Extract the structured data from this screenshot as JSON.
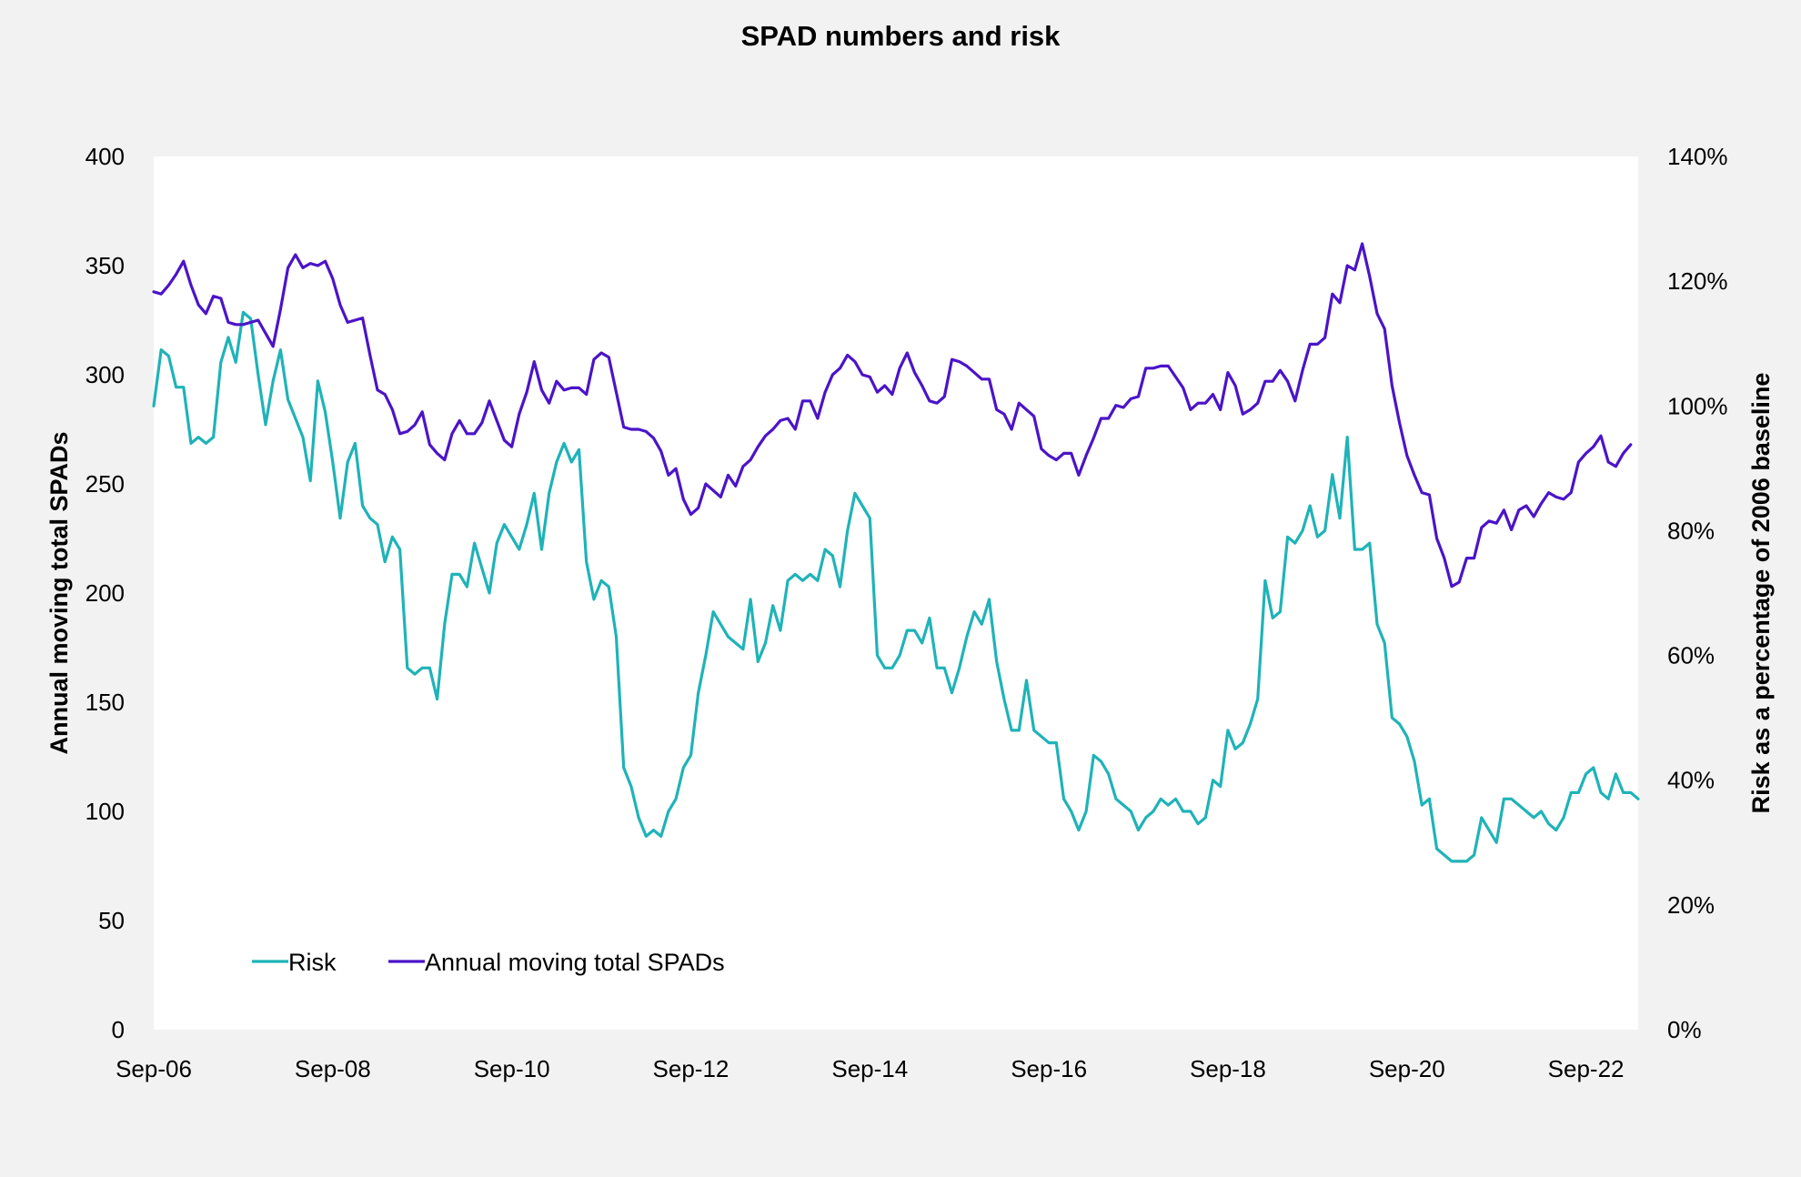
{
  "chart_data": {
    "type": "line",
    "title": "SPAD numbers and risk",
    "ylabel": "Annual moving total SPADs",
    "y2label": "Risk as a percentage of 2006 baseline",
    "xlabel": "",
    "ylim": [
      0,
      400
    ],
    "y2lim": [
      0,
      140
    ],
    "yticks": [
      "0",
      "50",
      "100",
      "150",
      "200",
      "250",
      "300",
      "350",
      "400"
    ],
    "y2ticks": [
      "0%",
      "20%",
      "40%",
      "60%",
      "80%",
      "100%",
      "120%",
      "140%"
    ],
    "xticks": [
      "Sep-06",
      "Sep-08",
      "Sep-10",
      "Sep-12",
      "Sep-14",
      "Sep-16",
      "Sep-18",
      "Sep-20",
      "Sep-22"
    ],
    "x_start": "Sep-06",
    "x_end": "Jul-23",
    "x_period": "monthly",
    "grid": false,
    "legend_position": "bottom-left",
    "colors": {
      "risk": "#1fb3b8",
      "spads": "#4b14c8",
      "plot_bg": "#ffffff",
      "page_bg": "#f2f2f2"
    },
    "series": [
      {
        "name": "Risk",
        "axis": "right",
        "values": [
          100,
          109,
          108,
          103,
          103,
          94,
          95,
          94,
          95,
          107,
          111,
          107,
          115,
          114,
          105,
          97,
          104,
          109,
          101,
          98,
          95,
          88,
          104,
          99,
          91,
          82,
          91,
          94,
          84,
          82,
          81,
          75,
          79,
          77,
          58,
          57,
          58,
          58,
          53,
          65,
          73,
          73,
          71,
          78,
          74,
          70,
          78,
          81,
          79,
          77,
          81,
          86,
          77,
          86,
          91,
          94,
          91,
          93,
          75,
          69,
          72,
          71,
          63,
          42,
          39,
          34,
          31,
          32,
          31,
          35,
          37,
          42,
          44,
          54,
          60,
          67,
          65,
          63,
          62,
          61,
          69,
          59,
          62,
          68,
          64,
          72,
          73,
          72,
          73,
          72,
          77,
          76,
          71,
          80,
          86,
          84,
          82,
          60,
          58,
          58,
          60,
          64,
          64,
          62,
          66,
          58,
          58,
          54,
          58,
          63,
          67,
          65,
          69,
          59,
          53,
          48,
          48,
          56,
          48,
          47,
          46,
          46,
          37,
          35,
          32,
          35,
          44,
          43,
          41,
          37,
          36,
          35,
          32,
          34,
          35,
          37,
          36,
          37,
          35,
          35,
          33,
          34,
          40,
          39,
          48,
          45,
          46,
          49,
          53,
          72,
          66,
          67,
          79,
          78,
          80,
          84,
          79,
          80,
          89,
          82,
          95,
          77,
          77,
          78,
          65,
          62,
          50,
          49,
          47,
          43,
          36,
          37,
          29,
          28,
          27,
          27,
          27,
          28,
          34,
          32,
          30,
          37,
          37,
          36,
          35,
          34,
          35,
          33,
          32,
          34,
          38,
          38,
          41,
          42,
          38,
          37,
          41,
          38,
          38,
          37
        ]
      },
      {
        "name": "Annual moving total SPADs",
        "axis": "left",
        "values": [
          338,
          337,
          341,
          346,
          352,
          341,
          332,
          328,
          336,
          335,
          324,
          323,
          323,
          324,
          325,
          319,
          313,
          330,
          349,
          355,
          349,
          351,
          350,
          352,
          344,
          332,
          324,
          325,
          326,
          309,
          293,
          291,
          284,
          273,
          274,
          277,
          283,
          268,
          264,
          261,
          273,
          279,
          273,
          273,
          278,
          288,
          279,
          270,
          267,
          282,
          292,
          306,
          293,
          287,
          297,
          293,
          294,
          294,
          291,
          307,
          310,
          308,
          292,
          276,
          275,
          275,
          274,
          271,
          265,
          254,
          257,
          243,
          236,
          239,
          250,
          247,
          244,
          254,
          249,
          258,
          261,
          267,
          272,
          275,
          279,
          280,
          275,
          288,
          288,
          280,
          292,
          300,
          303,
          309,
          306,
          300,
          299,
          292,
          295,
          291,
          303,
          310,
          301,
          295,
          288,
          287,
          290,
          307,
          306,
          304,
          301,
          298,
          298,
          284,
          282,
          275,
          287,
          284,
          281,
          266,
          263,
          261,
          264,
          264,
          254,
          263,
          271,
          280,
          280,
          286,
          285,
          289,
          290,
          303,
          303,
          304,
          304,
          299,
          294,
          284,
          287,
          287,
          291,
          284,
          301,
          295,
          282,
          284,
          287,
          297,
          297,
          302,
          297,
          288,
          302,
          314,
          314,
          317,
          337,
          333,
          350,
          348,
          360,
          345,
          328,
          321,
          295,
          278,
          263,
          254,
          246,
          245,
          225,
          216,
          203,
          205,
          216,
          216,
          230,
          233,
          232,
          238,
          229,
          238,
          240,
          235,
          241,
          246,
          244,
          243,
          246,
          260,
          264,
          267,
          272,
          260,
          258,
          264,
          268
        ]
      }
    ]
  }
}
